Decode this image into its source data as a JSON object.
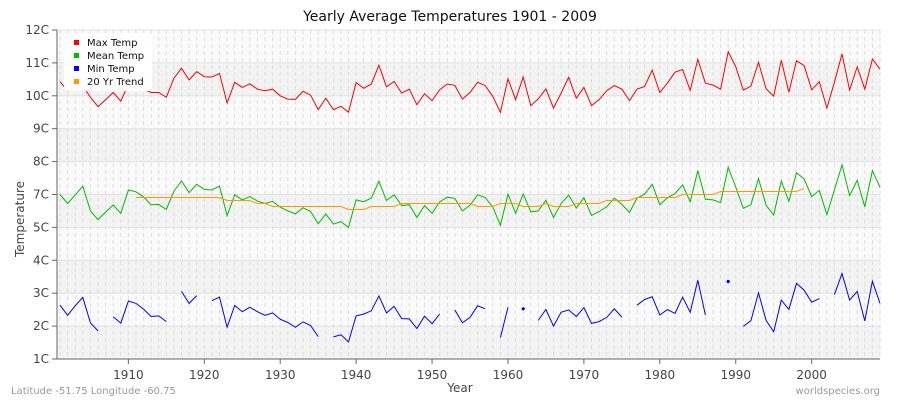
{
  "chart_data": {
    "type": "line",
    "title": "Yearly Average Temperatures 1901 - 2009",
    "xlabel": "Year",
    "ylabel": "Temperature",
    "xlim": [
      1900.6,
      2009
    ],
    "ylim": [
      1,
      12
    ],
    "x_ticks": [
      1910,
      1920,
      1930,
      1940,
      1950,
      1960,
      1970,
      1980,
      1990,
      2000
    ],
    "y_ticks": [
      12,
      10.9,
      9.8,
      8.7,
      7.6,
      6.5,
      5.4,
      4.3,
      3.2,
      2.1,
      1.0
    ],
    "y_tick_labels": [
      "12C",
      "11C",
      "10C",
      "9C",
      "8C",
      "7C",
      "5C",
      "4C",
      "3C",
      "2C",
      "1C"
    ],
    "grid": true,
    "legend_position": "top-left",
    "x_start": 1901,
    "series": [
      {
        "name": "Max Temp",
        "color": "#ff0000",
        "values": [
          10.27,
          9.97,
          10.02,
          10.13,
          9.75,
          9.44,
          9.67,
          9.91,
          9.62,
          10.19,
          10.13,
          10.02,
          9.91,
          9.91,
          9.75,
          10.39,
          10.72,
          10.33,
          10.61,
          10.44,
          10.43,
          10.55,
          9.56,
          10.25,
          10.08,
          10.2,
          10.02,
          9.97,
          10.02,
          9.8,
          9.69,
          9.68,
          9.95,
          9.82,
          9.34,
          9.72,
          9.34,
          9.45,
          9.25,
          10.24,
          10.05,
          10.19,
          10.82,
          10.1,
          10.28,
          9.89,
          10.02,
          9.5,
          9.87,
          9.64,
          10.0,
          10.19,
          10.15,
          9.69,
          9.91,
          10.25,
          10.14,
          9.78,
          9.25,
          10.37,
          9.67,
          10.43,
          9.47,
          9.7,
          10.03,
          9.39,
          9.89,
          10.42,
          9.72,
          10.08,
          9.47,
          9.67,
          9.97,
          10.14,
          10.02,
          9.64,
          10.02,
          10.11,
          10.66,
          9.91,
          10.22,
          10.59,
          10.68,
          9.98,
          11.02,
          10.22,
          10.16,
          10.02,
          11.27,
          10.78,
          9.99,
          10.12,
          10.92,
          10.03,
          9.79,
          10.99,
          9.92,
          10.97,
          10.81,
          10.0,
          10.27,
          9.39,
          10.25,
          11.2,
          9.99,
          10.77,
          10.02,
          11.03,
          10.69
        ]
      },
      {
        "name": "Mean Temp",
        "color": "#00bb00",
        "values": [
          6.5,
          6.2,
          6.48,
          6.78,
          5.95,
          5.66,
          5.91,
          6.15,
          5.87,
          6.65,
          6.59,
          6.42,
          6.16,
          6.17,
          6.0,
          6.61,
          6.95,
          6.56,
          6.84,
          6.67,
          6.65,
          6.78,
          5.79,
          6.49,
          6.32,
          6.43,
          6.28,
          6.2,
          6.27,
          6.08,
          5.95,
          5.85,
          6.06,
          5.93,
          5.52,
          5.85,
          5.51,
          5.59,
          5.4,
          6.32,
          6.26,
          6.38,
          6.94,
          6.3,
          6.49,
          6.13,
          6.16,
          5.73,
          6.13,
          5.87,
          6.25,
          6.41,
          6.37,
          5.95,
          6.14,
          6.49,
          6.4,
          6.08,
          5.47,
          6.51,
          5.87,
          6.52,
          5.92,
          5.95,
          6.31,
          5.73,
          6.2,
          6.48,
          6.05,
          6.39,
          5.8,
          5.93,
          6.09,
          6.38,
          6.17,
          5.9,
          6.38,
          6.51,
          6.84,
          6.16,
          6.39,
          6.53,
          6.82,
          6.26,
          7.3,
          6.34,
          6.32,
          6.23,
          7.41,
          6.75,
          6.04,
          6.16,
          7.03,
          6.14,
          5.81,
          6.95,
          6.27,
          7.23,
          7.02,
          6.43,
          6.64,
          5.83,
          6.65,
          7.49,
          6.46,
          6.97,
          6.09,
          7.3,
          6.74
        ]
      },
      {
        "name": "Min Temp",
        "color": "#0000ff",
        "values": [
          2.8,
          2.46,
          2.78,
          3.06,
          2.21,
          1.94,
          null,
          2.41,
          2.2,
          2.94,
          2.86,
          2.67,
          2.42,
          2.44,
          2.25,
          null,
          3.26,
          2.86,
          3.12,
          null,
          2.95,
          3.07,
          2.06,
          2.79,
          2.58,
          2.73,
          2.58,
          2.46,
          2.54,
          2.33,
          2.22,
          2.06,
          2.24,
          2.12,
          1.75,
          null,
          1.74,
          1.81,
          1.57,
          2.44,
          2.5,
          2.61,
          3.11,
          2.54,
          2.76,
          2.35,
          2.34,
          2.02,
          2.43,
          2.18,
          2.5,
          null,
          2.64,
          2.21,
          2.39,
          2.78,
          2.68,
          null,
          1.72,
          2.73,
          null,
          2.68,
          null,
          2.29,
          2.66,
          2.1,
          2.56,
          2.64,
          2.42,
          2.72,
          2.19,
          2.25,
          2.39,
          2.68,
          2.4,
          null,
          2.8,
          2.99,
          3.08,
          2.47,
          2.65,
          2.52,
          3.07,
          2.56,
          3.63,
          2.47,
          null,
          null,
          3.59,
          null,
          2.09,
          2.28,
          3.21,
          2.29,
          1.91,
          2.97,
          2.66,
          3.53,
          3.3,
          2.9,
          3.02,
          null,
          3.15,
          3.86,
          2.97,
          3.26,
          2.27,
          3.6,
          2.86
        ]
      },
      {
        "name": "20 Yr Trend",
        "color": "#ff9900",
        "values": [
          null,
          null,
          null,
          null,
          null,
          null,
          null,
          null,
          null,
          null,
          6.4,
          6.4,
          6.4,
          6.4,
          6.4,
          6.4,
          6.4,
          6.4,
          6.4,
          6.4,
          6.4,
          6.4,
          6.3,
          6.3,
          6.3,
          6.3,
          6.2,
          6.2,
          6.1,
          6.1,
          6.1,
          6.1,
          6.1,
          6.1,
          6.1,
          6.1,
          6.1,
          6.1,
          6.0,
          6.0,
          6.0,
          6.1,
          6.1,
          6.1,
          6.1,
          6.2,
          6.2,
          6.2,
          6.2,
          6.2,
          6.2,
          6.2,
          6.2,
          6.2,
          6.2,
          6.1,
          6.1,
          6.1,
          6.2,
          6.2,
          6.2,
          6.1,
          6.1,
          6.1,
          6.2,
          6.1,
          6.1,
          6.1,
          6.2,
          6.2,
          6.2,
          6.2,
          6.3,
          6.3,
          6.3,
          6.3,
          6.4,
          6.4,
          6.4,
          6.4,
          6.4,
          6.4,
          6.5,
          6.5,
          6.5,
          6.5,
          6.5,
          6.6,
          6.6,
          6.6,
          6.6,
          6.6,
          6.6,
          6.6,
          6.6,
          6.6,
          6.6,
          6.6,
          6.7,
          null,
          null,
          null,
          null,
          null,
          null,
          null,
          null,
          null,
          null
        ]
      }
    ]
  },
  "footer": {
    "location": "Latitude -51.75 Longitude -60.75",
    "site": "worldspecies.org"
  }
}
